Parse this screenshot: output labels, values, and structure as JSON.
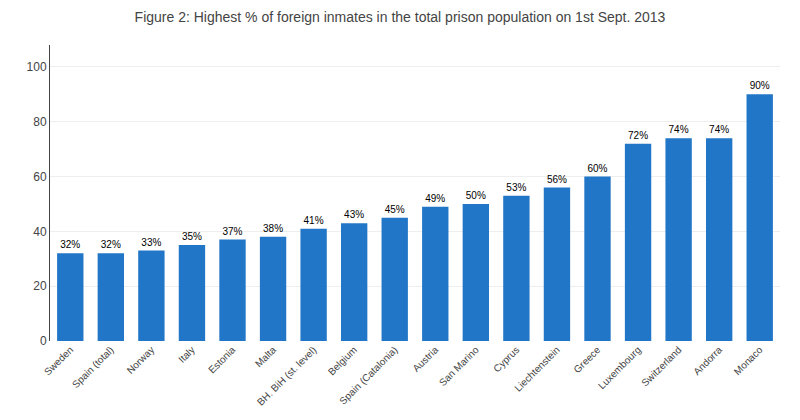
{
  "chart_data": {
    "type": "bar",
    "title": "Figure 2: Highest % of foreign inmates in the total prison population on 1st Sept. 2013",
    "categories": [
      "Sweden",
      "Spain (total)",
      "Norway",
      "Italy",
      "Estonia",
      "Malta",
      "BH. BiH (st. level)",
      "Belgium",
      "Spain (Catalonia)",
      "Austria",
      "San Marino",
      "Cyprus",
      "Liechtenstein",
      "Greece",
      "Luxembourg",
      "Switzerland",
      "Andorra",
      "Monaco"
    ],
    "values": [
      32,
      32,
      33,
      35,
      37,
      38,
      41,
      43,
      45,
      49,
      50,
      53,
      56,
      60,
      72,
      74,
      74,
      90
    ],
    "value_labels": [
      "32%",
      "32%",
      "33%",
      "35%",
      "37%",
      "38%",
      "41%",
      "43%",
      "45%",
      "49%",
      "50%",
      "53%",
      "56%",
      "60%",
      "72%",
      "74%",
      "74%",
      "90%"
    ],
    "data_labels": true,
    "color": "#2176C7",
    "ylim": [
      0,
      108
    ],
    "yticks": [
      0,
      20,
      40,
      60,
      80,
      100
    ],
    "grid": true
  }
}
